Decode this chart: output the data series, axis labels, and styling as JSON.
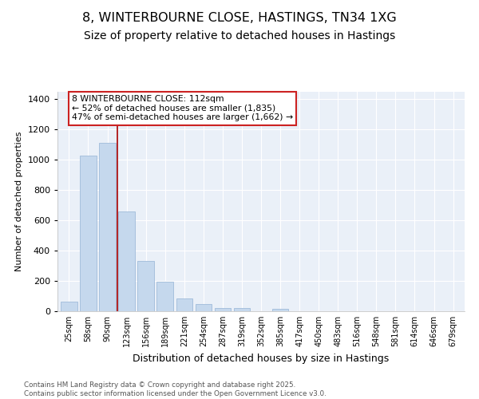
{
  "title": "8, WINTERBOURNE CLOSE, HASTINGS, TN34 1XG",
  "subtitle": "Size of property relative to detached houses in Hastings",
  "xlabel": "Distribution of detached houses by size in Hastings",
  "ylabel": "Number of detached properties",
  "categories": [
    "25sqm",
    "58sqm",
    "90sqm",
    "123sqm",
    "156sqm",
    "189sqm",
    "221sqm",
    "254sqm",
    "287sqm",
    "319sqm",
    "352sqm",
    "385sqm",
    "417sqm",
    "450sqm",
    "483sqm",
    "516sqm",
    "548sqm",
    "581sqm",
    "614sqm",
    "646sqm",
    "679sqm"
  ],
  "values": [
    65,
    1030,
    1110,
    660,
    330,
    195,
    85,
    47,
    20,
    20,
    0,
    15,
    0,
    0,
    0,
    0,
    0,
    0,
    0,
    0,
    0
  ],
  "bar_color": "#c5d8ed",
  "bar_edge_color": "#a0bbda",
  "vline_x": 2.5,
  "vline_color": "#aa0000",
  "property_label": "8 WINTERBOURNE CLOSE: 112sqm",
  "annotation_line1": "← 52% of detached houses are smaller (1,835)",
  "annotation_line2": "47% of semi-detached houses are larger (1,662) →",
  "annotation_box_facecolor": "#ffffff",
  "annotation_box_edgecolor": "#cc2222",
  "background_color": "#ffffff",
  "plot_bg_color": "#eaf0f8",
  "grid_color": "#ffffff",
  "footer_line1": "Contains HM Land Registry data © Crown copyright and database right 2025.",
  "footer_line2": "Contains public sector information licensed under the Open Government Licence v3.0.",
  "ylim": [
    0,
    1450
  ],
  "yticks": [
    0,
    200,
    400,
    600,
    800,
    1000,
    1200,
    1400
  ],
  "title_fontsize": 11.5,
  "subtitle_fontsize": 10
}
